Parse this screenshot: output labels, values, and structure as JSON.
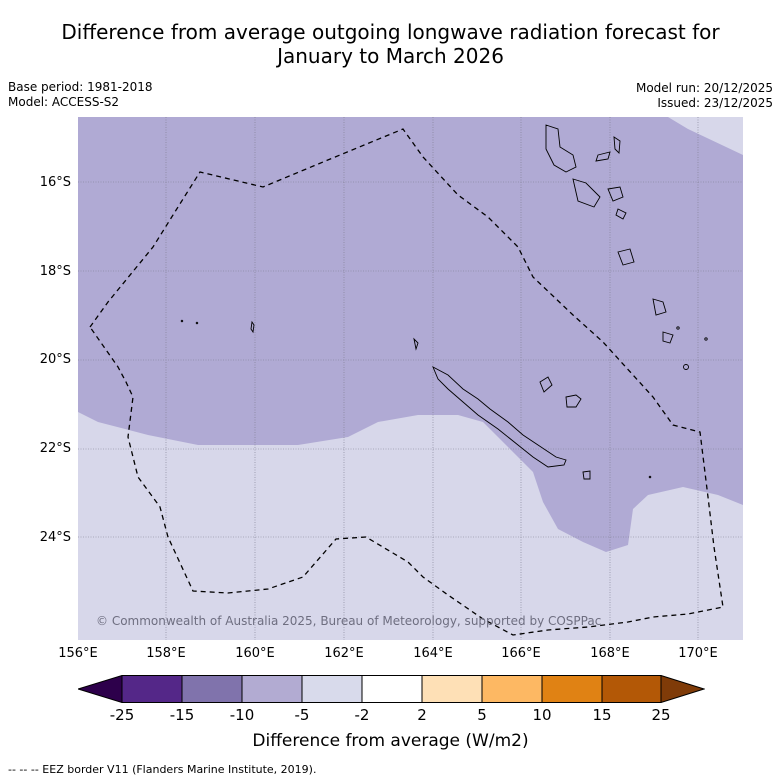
{
  "title": {
    "line1": "Difference from average outgoing longwave radiation forecast for",
    "line2": "January to March 2026"
  },
  "meta": {
    "base_period": "Base period: 1981-2018",
    "model": "Model: ACCESS-S2",
    "model_run": "Model run: 20/12/2025",
    "issued": "Issued: 23/12/2025"
  },
  "map": {
    "lat_labels": [
      "16°S",
      "18°S",
      "20°S",
      "22°S",
      "24°S"
    ],
    "lon_labels": [
      "156°E",
      "158°E",
      "160°E",
      "162°E",
      "164°E",
      "166°E",
      "168°E",
      "170°E"
    ],
    "copyright": "© Commonwealth of Australia 2025, Bureau of Meteorology, supported by COSPPac",
    "colors": {
      "anomaly_minus_5": "#b0aad4",
      "anomaly_minus_2": "#d7d7ea"
    }
  },
  "colorbar": {
    "tick_labels": [
      "-25",
      "-15",
      "-10",
      "-5",
      "-2",
      "2",
      "5",
      "10",
      "15",
      "25"
    ],
    "colors": [
      "#2d004b",
      "#542788",
      "#8073ac",
      "#b2abd2",
      "#d8daeb",
      "#ffffff",
      "#fee0b6",
      "#fdb863",
      "#e08214",
      "#b35806",
      "#7f3b08"
    ],
    "label": "Difference from average (W/m2)"
  },
  "footnote": "--  --  -- EEZ border V11 (Flanders Marine Institute, 2019)."
}
